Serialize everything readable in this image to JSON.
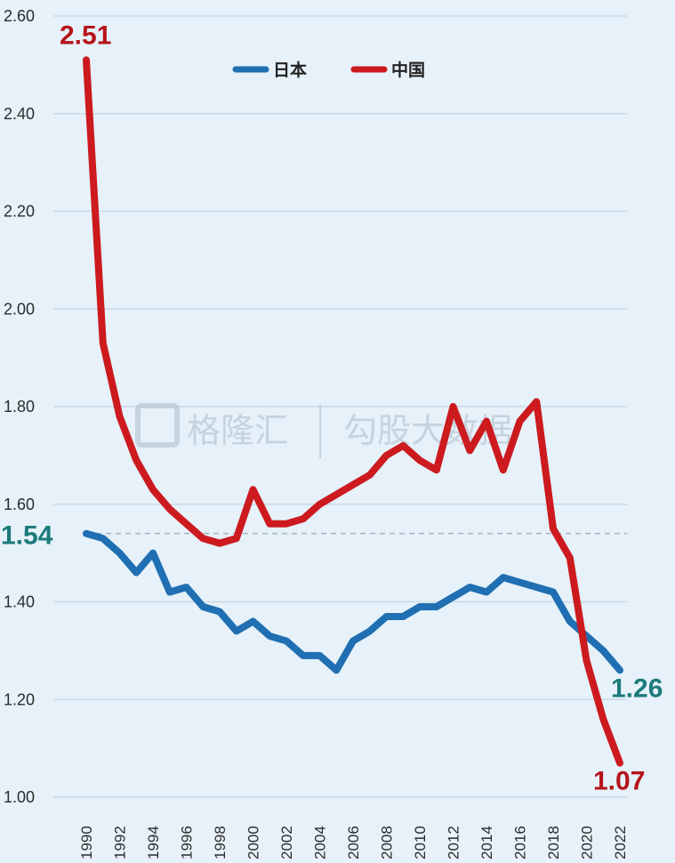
{
  "chart_data": {
    "type": "line",
    "title": "",
    "xlabel": "",
    "ylabel": "",
    "ylim": [
      1.0,
      2.6
    ],
    "xlim": [
      1990,
      2022
    ],
    "grid": true,
    "legend_placement": "top-center",
    "y_ticks": [
      "1.00",
      "1.20",
      "1.40",
      "1.60",
      "1.80",
      "2.00",
      "2.20",
      "2.40",
      "2.60"
    ],
    "x_ticks": [
      "1990",
      "1992",
      "1994",
      "1996",
      "1998",
      "2000",
      "2002",
      "2004",
      "2006",
      "2008",
      "2010",
      "2012",
      "2014",
      "2016",
      "2018",
      "2020",
      "2022"
    ],
    "x": [
      1990,
      1991,
      1992,
      1993,
      1994,
      1995,
      1996,
      1997,
      1998,
      1999,
      2000,
      2001,
      2002,
      2003,
      2004,
      2005,
      2006,
      2007,
      2008,
      2009,
      2010,
      2011,
      2012,
      2013,
      2014,
      2015,
      2016,
      2017,
      2018,
      2019,
      2020,
      2021,
      2022
    ],
    "series": [
      {
        "name": "日本",
        "color": "#1f6fb2",
        "values": [
          1.54,
          1.53,
          1.5,
          1.46,
          1.5,
          1.42,
          1.43,
          1.39,
          1.38,
          1.34,
          1.36,
          1.33,
          1.32,
          1.29,
          1.29,
          1.26,
          1.32,
          1.34,
          1.37,
          1.37,
          1.39,
          1.39,
          1.41,
          1.43,
          1.42,
          1.45,
          1.44,
          1.43,
          1.42,
          1.36,
          1.33,
          1.3,
          1.26
        ]
      },
      {
        "name": "中国",
        "color": "#cc1a1f",
        "values": [
          2.51,
          1.93,
          1.78,
          1.69,
          1.63,
          1.59,
          1.56,
          1.53,
          1.52,
          1.53,
          1.63,
          1.56,
          1.56,
          1.57,
          1.6,
          1.62,
          1.64,
          1.66,
          1.7,
          1.72,
          1.69,
          1.67,
          1.8,
          1.71,
          1.77,
          1.67,
          1.77,
          1.81,
          1.55,
          1.49,
          1.28,
          1.16,
          1.07
        ]
      }
    ],
    "reference_line": {
      "value": 1.54,
      "style": "dashed"
    },
    "annotations": [
      {
        "text": "2.51",
        "series": "中国",
        "x": 1990,
        "y": 2.51
      },
      {
        "text": "1.54",
        "series": "日本",
        "x": 1990,
        "y": 1.54
      },
      {
        "text": "1.26",
        "series": "日本",
        "x": 2022,
        "y": 1.26
      },
      {
        "text": "1.07",
        "series": "中国",
        "x": 2022,
        "y": 1.07
      }
    ],
    "watermark": {
      "text1": "格隆汇",
      "text2": "勾股大数据"
    }
  }
}
